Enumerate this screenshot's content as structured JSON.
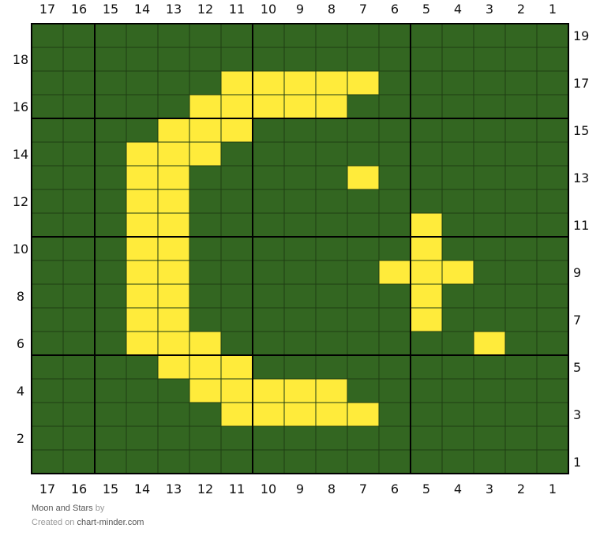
{
  "chart_data": {
    "type": "heatmap",
    "title": "Moon and Stars",
    "columns": [
      17,
      16,
      15,
      14,
      13,
      12,
      11,
      10,
      9,
      8,
      7,
      6,
      5,
      4,
      3,
      2,
      1
    ],
    "rows": [
      19,
      18,
      17,
      16,
      15,
      14,
      13,
      12,
      11,
      10,
      9,
      8,
      7,
      6,
      5,
      4,
      3,
      2,
      1
    ],
    "left_row_labels": [
      18,
      16,
      14,
      12,
      10,
      8,
      6,
      4,
      2
    ],
    "right_row_labels": [
      19,
      17,
      15,
      13,
      11,
      9,
      7,
      5,
      3,
      1
    ],
    "background_color": "#336621",
    "highlight_color": "#ffeb3b",
    "grid_color": "#1f3d14",
    "major_line_color": "#000000",
    "highlighted_cells": {
      "17": [
        11,
        10,
        9,
        8,
        7
      ],
      "16": [
        12,
        11,
        10,
        9,
        8
      ],
      "15": [
        13,
        12,
        11
      ],
      "14": [
        14,
        13,
        12
      ],
      "13": [
        14,
        13,
        7
      ],
      "12": [
        14,
        13
      ],
      "11": [
        14,
        13,
        5
      ],
      "10": [
        14,
        13,
        5
      ],
      "9": [
        14,
        13,
        6,
        5,
        4
      ],
      "8": [
        14,
        13,
        5
      ],
      "7": [
        14,
        13,
        5
      ],
      "6": [
        14,
        13,
        12,
        3
      ],
      "5": [
        13,
        12,
        11
      ],
      "4": [
        12,
        11,
        10,
        9,
        8
      ],
      "3": [
        11,
        10,
        9,
        8,
        7
      ]
    }
  },
  "footer": {
    "title": "Moon and Stars",
    "by": "by",
    "created_on": "Created on",
    "site": "chart-minder.com"
  }
}
